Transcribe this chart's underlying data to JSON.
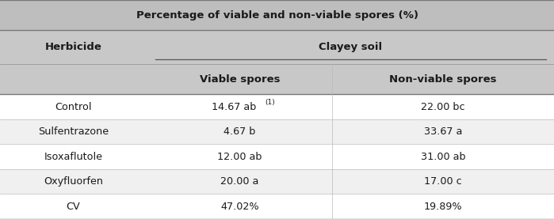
{
  "title": "Percentage of viable and non-viable spores (%)",
  "col_header_1": "Herbicide",
  "col_header_2": "Clayey soil",
  "col_subheader_1": "Viable spores",
  "col_subheader_2": "Non-viable spores",
  "rows": [
    [
      "Control",
      "14.67 ab",
      "(1)",
      "22.00 bc"
    ],
    [
      "Sulfentrazone",
      "4.67 b",
      "",
      "33.67 a"
    ],
    [
      "Isoxaflutole",
      "12.00 ab",
      "",
      "31.00 ab"
    ],
    [
      "Oxyfluorfen",
      "20.00 a",
      "",
      "17.00 c"
    ],
    [
      "CV",
      "47.02%",
      "",
      "19.89%"
    ]
  ],
  "title_bg": "#bebebe",
  "header_bg": "#c8c8c8",
  "row_bg_odd": "#f0f0f0",
  "row_bg_even": "#ffffff",
  "text_color": "#1a1a1a",
  "title_fontsize": 9.5,
  "header_fontsize": 9.5,
  "data_fontsize": 9.2,
  "fig_width": 6.99,
  "fig_height": 2.77,
  "col_splits": [
    0.0,
    0.265,
    0.6,
    1.0
  ]
}
